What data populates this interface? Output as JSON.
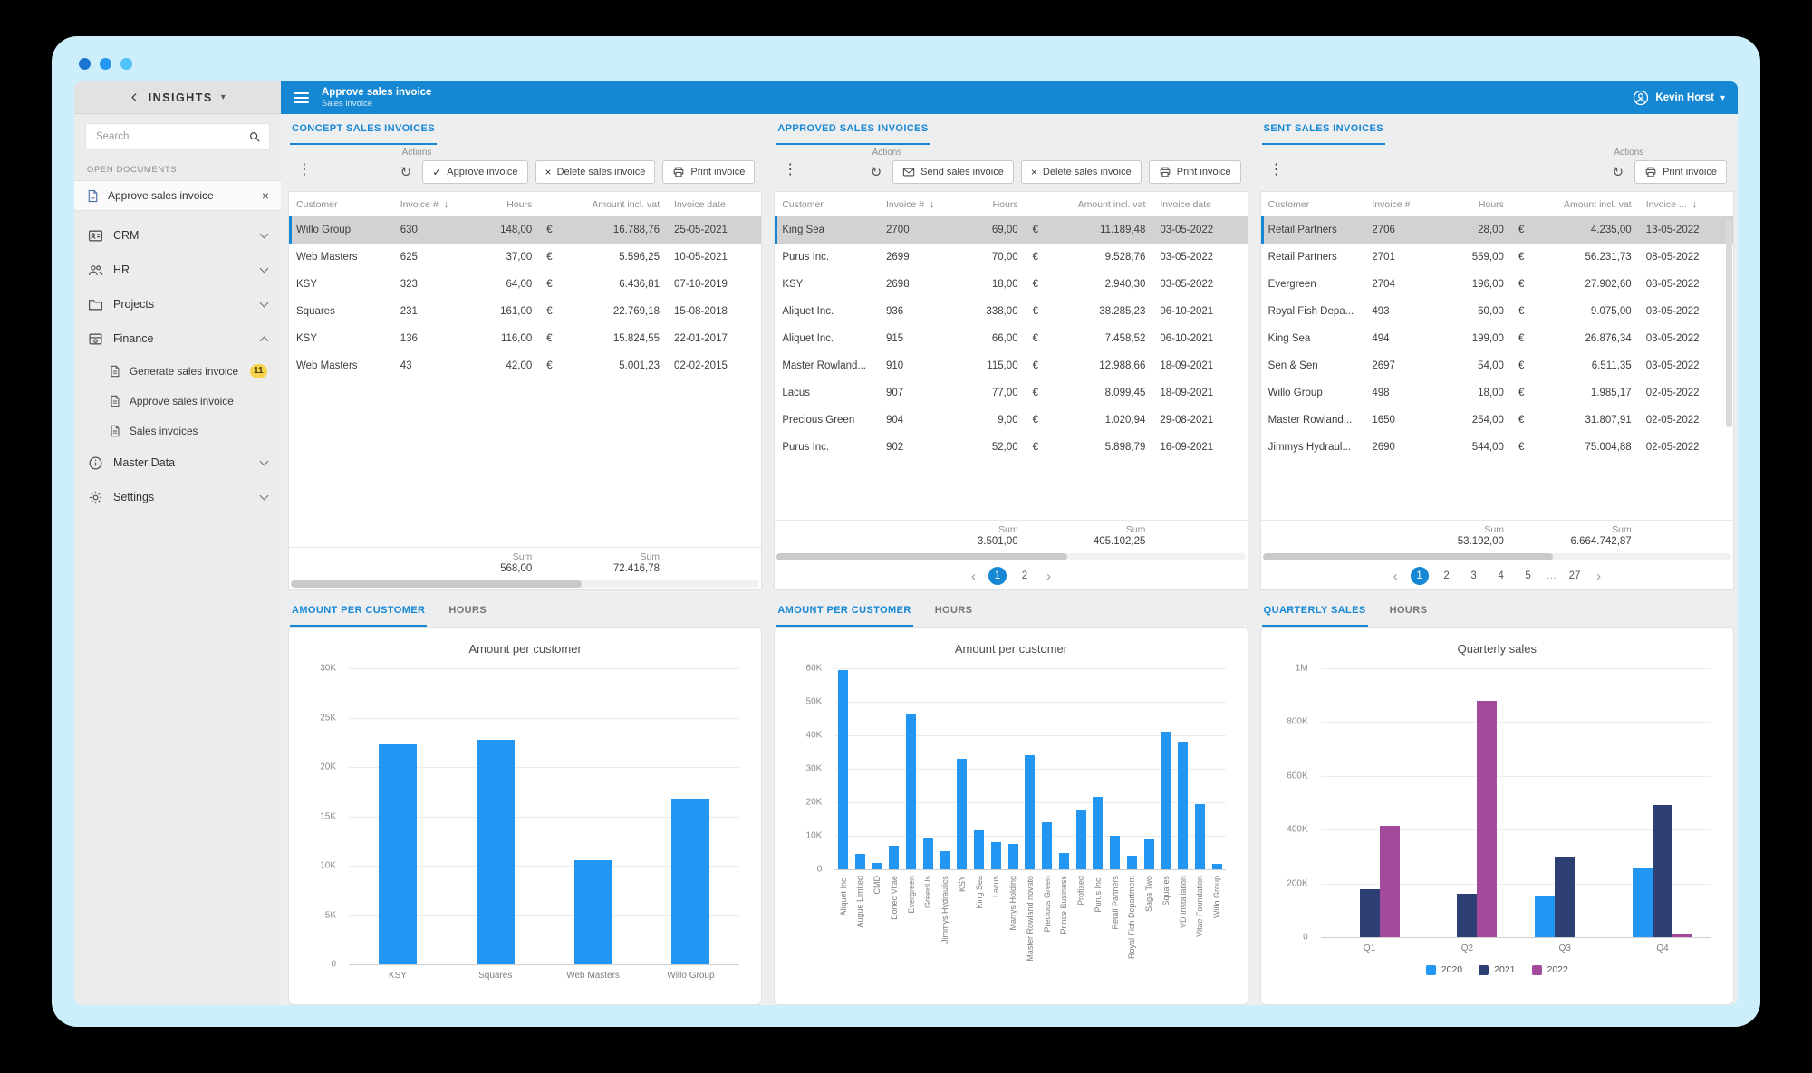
{
  "icons": {
    "kebab": "⋮",
    "refresh": "↻",
    "check": "✓",
    "close": "×",
    "sort": "↓",
    "caret": "▾"
  },
  "sidebar": {
    "brand": "INSIGHTS",
    "search_placeholder": "Search",
    "open_documents_label": "OPEN DOCUMENTS",
    "open_document": "Approve sales invoice",
    "nav": [
      {
        "label": "CRM"
      },
      {
        "label": "HR"
      },
      {
        "label": "Projects"
      },
      {
        "label": "Finance",
        "expanded": true
      },
      {
        "label": "Master Data"
      },
      {
        "label": "Settings"
      }
    ],
    "finance_children": [
      {
        "label": "Generate sales invoice",
        "badge": "11"
      },
      {
        "label": "Approve sales invoice"
      },
      {
        "label": "Sales invoices"
      }
    ]
  },
  "header": {
    "title": "Approve sales invoice",
    "subtitle": "Sales invoice",
    "user": "Kevin Horst"
  },
  "panels": [
    {
      "tab": "CONCEPT SALES INVOICES",
      "actions_label": "Actions",
      "buttons": [
        {
          "label": "Approve invoice",
          "icon": "check"
        },
        {
          "label": "Delete sales invoice",
          "icon": "close"
        },
        {
          "label": "Print invoice",
          "icon": "printer"
        }
      ],
      "columns": [
        "Customer",
        "Invoice #",
        "Hours",
        "",
        "Amount incl. vat",
        "Invoice date"
      ],
      "rows": [
        [
          "Willo Group",
          "630",
          "148,00",
          "€",
          "16.788,76",
          "25-05-2021"
        ],
        [
          "Web Masters",
          "625",
          "37,00",
          "€",
          "5.596,25",
          "10-05-2021"
        ],
        [
          "KSY",
          "323",
          "64,00",
          "€",
          "6.436,81",
          "07-10-2019"
        ],
        [
          "Squares",
          "231",
          "161,00",
          "€",
          "22.769,18",
          "15-08-2018"
        ],
        [
          "KSY",
          "136",
          "116,00",
          "€",
          "15.824,55",
          "22-01-2017"
        ],
        [
          "Web Masters",
          "43",
          "42,00",
          "€",
          "5.001,23",
          "02-02-2015"
        ]
      ],
      "selected_row": 0,
      "sum_label": "Sum",
      "sums": {
        "hours": "568,00",
        "amount": "72.416,78"
      },
      "pagination": null
    },
    {
      "tab": "APPROVED SALES INVOICES",
      "actions_label": "Actions",
      "buttons": [
        {
          "label": "Send sales invoice",
          "icon": "envelope"
        },
        {
          "label": "Delete sales invoice",
          "icon": "close"
        },
        {
          "label": "Print invoice",
          "icon": "printer"
        }
      ],
      "columns": [
        "Customer",
        "Invoice #",
        "Hours",
        "",
        "Amount incl. vat",
        "Invoice date"
      ],
      "rows": [
        [
          "King Sea",
          "2700",
          "69,00",
          "€",
          "11.189,48",
          "03-05-2022"
        ],
        [
          "Purus Inc.",
          "2699",
          "70,00",
          "€",
          "9.528,76",
          "03-05-2022"
        ],
        [
          "KSY",
          "2698",
          "18,00",
          "€",
          "2.940,30",
          "03-05-2022"
        ],
        [
          "Aliquet Inc.",
          "936",
          "338,00",
          "€",
          "38.285,23",
          "06-10-2021"
        ],
        [
          "Aliquet Inc.",
          "915",
          "66,00",
          "€",
          "7.458,52",
          "06-10-2021"
        ],
        [
          "Master Rowland...",
          "910",
          "115,00",
          "€",
          "12.988,66",
          "18-09-2021"
        ],
        [
          "Lacus",
          "907",
          "77,00",
          "€",
          "8.099,45",
          "18-09-2021"
        ],
        [
          "Precious Green",
          "904",
          "9,00",
          "€",
          "1.020,94",
          "29-08-2021"
        ],
        [
          "Purus Inc.",
          "902",
          "52,00",
          "€",
          "5.898,79",
          "16-09-2021"
        ]
      ],
      "selected_row": 0,
      "sum_label": "Sum",
      "sums": {
        "hours": "3.501,00",
        "amount": "405.102,25"
      },
      "pagination": {
        "prev": "‹",
        "pages": [
          "1",
          "2"
        ],
        "active": "1",
        "next": "›"
      }
    },
    {
      "tab": "SENT SALES INVOICES",
      "actions_label": "Actions",
      "buttons": [
        {
          "label": "Print invoice",
          "icon": "printer"
        }
      ],
      "columns": [
        "Customer",
        "Invoice #",
        "Hours",
        "",
        "Amount incl. vat",
        "Invoice ..."
      ],
      "rows": [
        [
          "Retail Partners",
          "2706",
          "28,00",
          "€",
          "4.235,00",
          "13-05-2022"
        ],
        [
          "Retail Partners",
          "2701",
          "559,00",
          "€",
          "56.231,73",
          "08-05-2022"
        ],
        [
          "Evergreen",
          "2704",
          "196,00",
          "€",
          "27.902,60",
          "08-05-2022"
        ],
        [
          "Royal Fish Depa...",
          "493",
          "60,00",
          "€",
          "9.075,00",
          "03-05-2022"
        ],
        [
          "King Sea",
          "494",
          "199,00",
          "€",
          "26.876,34",
          "03-05-2022"
        ],
        [
          "Sen & Sen",
          "2697",
          "54,00",
          "€",
          "6.511,35",
          "03-05-2022"
        ],
        [
          "Willo Group",
          "498",
          "18,00",
          "€",
          "1.985,17",
          "02-05-2022"
        ],
        [
          "Master Rowland...",
          "1650",
          "254,00",
          "€",
          "31.807,91",
          "02-05-2022"
        ],
        [
          "Jimmys Hydraul...",
          "2690",
          "544,00",
          "€",
          "75.004,88",
          "02-05-2022"
        ]
      ],
      "selected_row": 0,
      "sum_label": "Sum",
      "sums": {
        "hours": "53.192,00",
        "amount": "6.664.742,87"
      },
      "pagination": {
        "prev": "‹",
        "pages": [
          "1",
          "2",
          "3",
          "4",
          "5",
          "…",
          "27"
        ],
        "active": "1",
        "next": "›"
      }
    }
  ],
  "chart_panels": [
    {
      "tabs": [
        "AMOUNT PER CUSTOMER",
        "HOURS"
      ]
    },
    {
      "tabs": [
        "AMOUNT PER CUSTOMER",
        "HOURS"
      ]
    },
    {
      "tabs": [
        "QUARTERLY SALES",
        "HOURS"
      ]
    }
  ],
  "chart_data": [
    {
      "type": "bar",
      "title": "Amount per customer",
      "categories": [
        "KSY",
        "Squares",
        "Web Masters",
        "Willo Group"
      ],
      "values": [
        22261,
        22769,
        10597,
        16789
      ],
      "ylim": [
        0,
        30000
      ],
      "yticks": [
        "30K",
        "25K",
        "20K",
        "15K",
        "10K",
        "5K",
        "0"
      ],
      "bar_color": "#2196f3",
      "grid": true,
      "legend_position": "none"
    },
    {
      "type": "bar",
      "title": "Amount per customer",
      "categories": [
        "Aliquet Inc.",
        "Augue Limited",
        "CMD",
        "Donec Vitae",
        "Evergreen",
        "GreenUs",
        "Jimmys Hydraulics",
        "KSY",
        "King Sea",
        "Lacus",
        "Marrys Holding",
        "Master Rowland novato",
        "Precious Green",
        "Prince Business",
        "Profixed",
        "Purus Inc.",
        "Retail Partners",
        "Royal Fish Department",
        "Saga Two",
        "Squares",
        "VD Installation",
        "Vitae Foundation",
        "Willo Group"
      ],
      "values": [
        59500,
        4500,
        2000,
        7000,
        46500,
        9500,
        5500,
        33000,
        11500,
        8000,
        7500,
        34000,
        14000,
        5000,
        17500,
        21500,
        10000,
        4000,
        9000,
        41000,
        38000,
        19500,
        1500
      ],
      "ylim": [
        0,
        60000
      ],
      "yticks": [
        "60K",
        "50K",
        "40K",
        "30K",
        "20K",
        "10K",
        "0"
      ],
      "bar_color": "#2196f3",
      "grid": true,
      "legend_position": "none"
    },
    {
      "type": "grouped-bar",
      "title": "Quarterly sales",
      "categories": [
        "Q1",
        "Q2",
        "Q3",
        "Q4"
      ],
      "series": [
        {
          "name": "2020",
          "color": "#2196f3",
          "values": [
            0,
            0,
            155000,
            255000
          ]
        },
        {
          "name": "2021",
          "color": "#2e3f73",
          "values": [
            180000,
            160000,
            300000,
            490000
          ]
        },
        {
          "name": "2022",
          "color": "#a44a9c",
          "values": [
            415000,
            880000,
            0,
            10000
          ]
        }
      ],
      "ylim": [
        0,
        1000000
      ],
      "yticks": [
        "1M",
        "800K",
        "600K",
        "400K",
        "200K",
        "0"
      ],
      "grid": true,
      "legend_position": "bottom"
    }
  ]
}
